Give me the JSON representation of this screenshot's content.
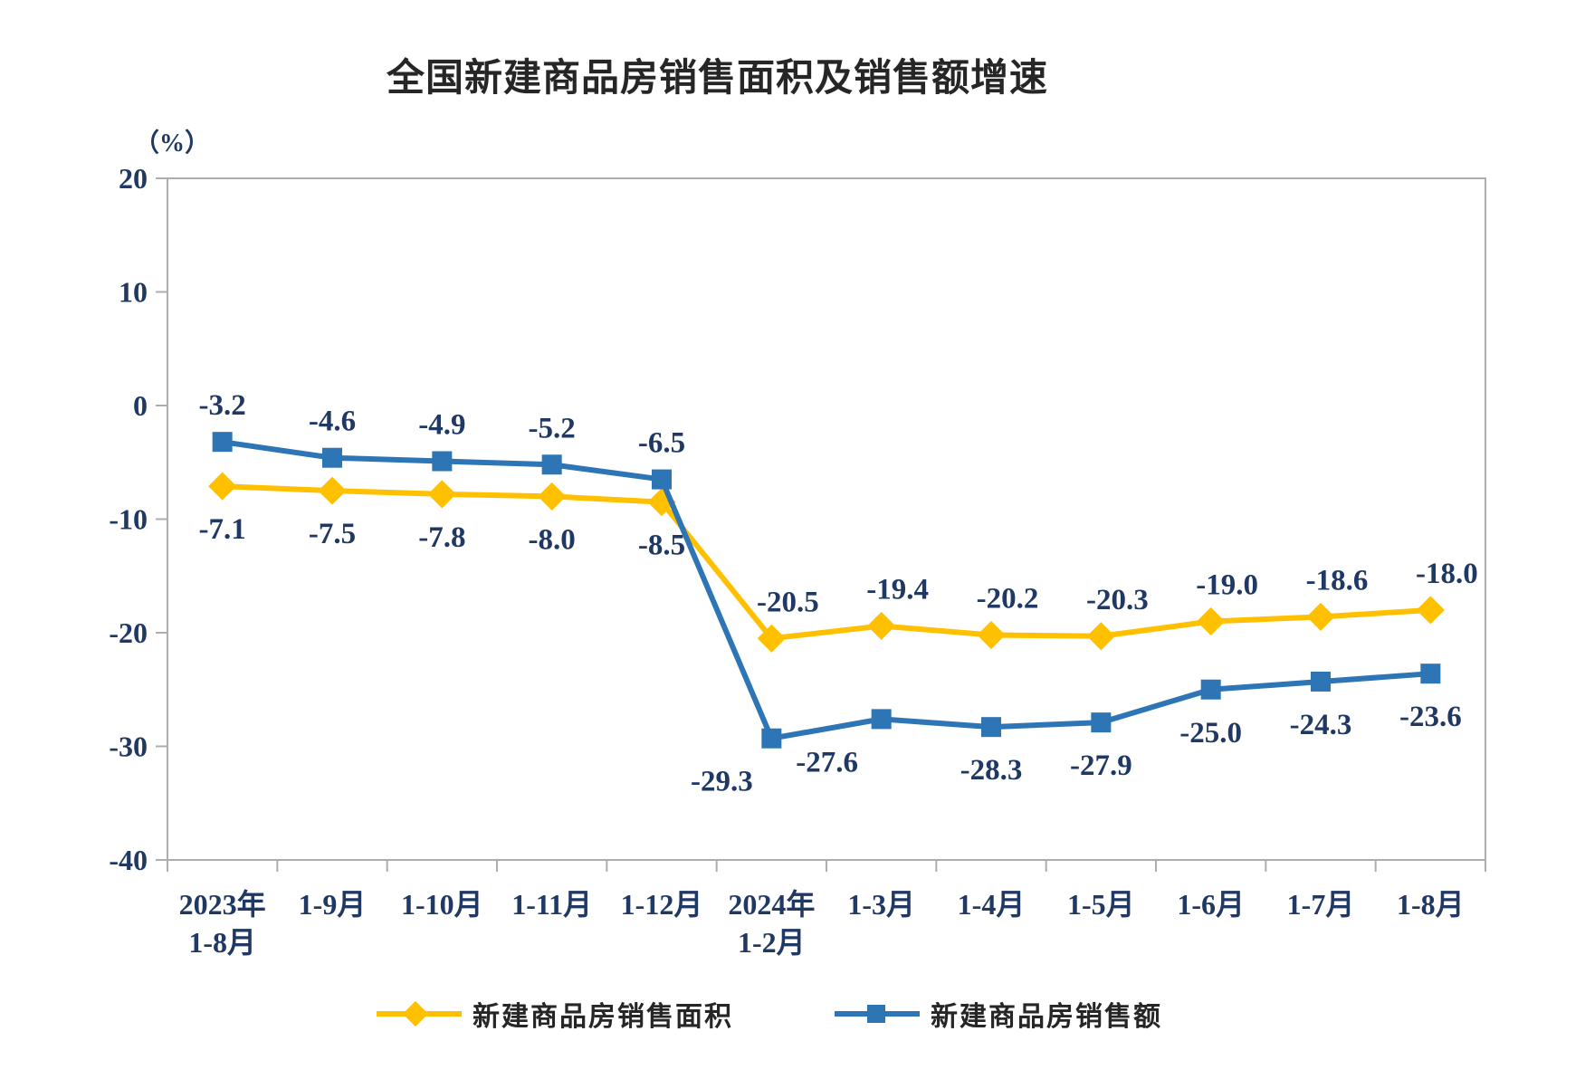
{
  "chart_data": {
    "type": "line",
    "title": "全国新建商品房销售面积及销售额增速",
    "unit_label": "（%）",
    "xlabel": "",
    "ylabel": "（%）",
    "ylim": [
      -40,
      20
    ],
    "ytick_interval": 10,
    "yticks": [
      "20",
      "10",
      "0",
      "-10",
      "-20",
      "-30",
      "-40"
    ],
    "grid": false,
    "legend_position": "bottom",
    "categories": [
      "2023年\n1-8月",
      "1-9月",
      "1-10月",
      "1-11月",
      "1-12月",
      "2024年\n1-2月",
      "1-3月",
      "1-4月",
      "1-5月",
      "1-6月",
      "1-7月",
      "1-8月"
    ],
    "series": [
      {
        "name": "新建商品房销售面积",
        "marker": "diamond",
        "color": "#FFC000",
        "values": [
          -7.1,
          -7.5,
          -7.8,
          -8.0,
          -8.5,
          -20.5,
          -19.4,
          -20.2,
          -20.3,
          -19.0,
          -18.6,
          -18.0
        ]
      },
      {
        "name": "新建商品房销售额",
        "marker": "square",
        "color": "#2E75B6",
        "values": [
          -3.2,
          -4.6,
          -4.9,
          -5.2,
          -6.5,
          -29.3,
          -27.6,
          -28.3,
          -27.9,
          -25.0,
          -24.3,
          -23.6
        ]
      }
    ]
  },
  "style": {
    "accent_yellow": "#FFC000",
    "accent_blue": "#2E75B6",
    "axis_color": "#ADADAD",
    "number_color": "#1F3864",
    "title_color": "#262626"
  }
}
